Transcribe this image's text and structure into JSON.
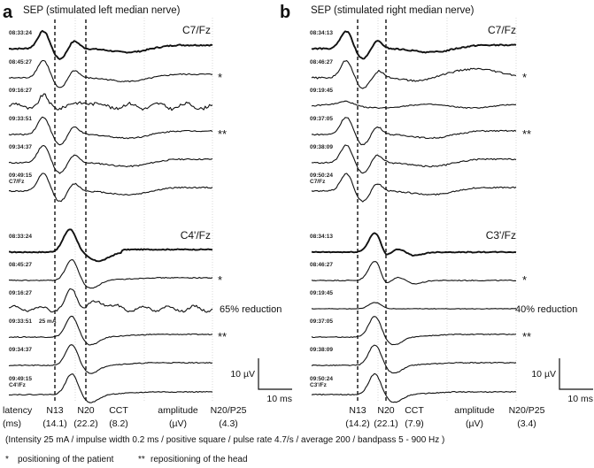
{
  "chart_data": {
    "type": "line",
    "description": "Somatosensory evoked potential (SEP) recordings over time",
    "panels": [
      {
        "letter": "a",
        "title": "SEP (stimulated left median nerve)",
        "groups": [
          {
            "channel": "C7/Fz",
            "traces": [
              {
                "time": "08:33:24",
                "marker": "",
                "extra": "",
                "shape": "c7_clean",
                "bold": true
              },
              {
                "time": "08:45:27",
                "marker": "*",
                "extra": "",
                "shape": "c7_clean"
              },
              {
                "time": "09:16:27",
                "marker": "",
                "extra": "",
                "shape": "c7_noisy"
              },
              {
                "time": "09:33:51",
                "marker": "**",
                "extra": "",
                "shape": "c7_clean"
              },
              {
                "time": "09:34:37",
                "marker": "",
                "extra": "",
                "shape": "c7_clean"
              },
              {
                "time": "09:49:15",
                "marker": "",
                "extra": "C7/Fz",
                "shape": "c7_clean"
              }
            ]
          },
          {
            "channel": "C4'/Fz",
            "traces": [
              {
                "time": "08:33:24",
                "marker": "",
                "extra": "",
                "shape": "cort_big",
                "bold": true
              },
              {
                "time": "08:45:27",
                "marker": "*",
                "extra": "",
                "shape": "cort"
              },
              {
                "time": "09:16:27",
                "marker": "",
                "extra": "",
                "shape": "cort_noisy",
                "note": "65% reduction"
              },
              {
                "time": "09:33:51",
                "marker": "**",
                "extra": "25 mA",
                "shape": "cort"
              },
              {
                "time": "09:34:37",
                "marker": "",
                "extra": "",
                "shape": "cort"
              },
              {
                "time": "09:49:15",
                "marker": "",
                "extra": "C4'/Fz",
                "shape": "cort"
              }
            ]
          }
        ],
        "scale_bar": {
          "vertical": "10 µV",
          "horizontal": "10 ms"
        },
        "latency_row": {
          "label_line1": "latency",
          "label_line2": "(ms)",
          "items": [
            {
              "name": "N13",
              "value": "(14.1)"
            },
            {
              "name": "N20",
              "value": "(22.2)"
            },
            {
              "name": "CCT",
              "value": "(8.2)"
            },
            {
              "name": "amplitude",
              "value": "(µV)"
            },
            {
              "name": "N20/P25",
              "value": "(4.3)"
            }
          ]
        }
      },
      {
        "letter": "b",
        "title": "SEP (stimulated right median nerve)",
        "groups": [
          {
            "channel": "C7/Fz",
            "traces": [
              {
                "time": "08:34:13",
                "marker": "",
                "extra": "",
                "shape": "c7_clean",
                "bold": true
              },
              {
                "time": "08:46:27",
                "marker": "*",
                "extra": "",
                "shape": "c7_wavy"
              },
              {
                "time": "09:19:45",
                "marker": "",
                "extra": "",
                "shape": "c7_small"
              },
              {
                "time": "09:37:05",
                "marker": "**",
                "extra": "",
                "shape": "c7_clean"
              },
              {
                "time": "09:38:09",
                "marker": "",
                "extra": "",
                "shape": "c7_clean"
              },
              {
                "time": "09:50:24",
                "marker": "",
                "extra": "C7/Fz",
                "shape": "c7_clean"
              }
            ]
          },
          {
            "channel": "C3'/Fz",
            "traces": [
              {
                "time": "08:34:13",
                "marker": "",
                "extra": "",
                "shape": "cort_b",
                "bold": true
              },
              {
                "time": "08:46:27",
                "marker": "*",
                "extra": "",
                "shape": "cort_b"
              },
              {
                "time": "09:19:45",
                "marker": "",
                "extra": "",
                "shape": "cort_small",
                "note": "40% reduction"
              },
              {
                "time": "09:37:05",
                "marker": "**",
                "extra": "",
                "shape": "cort"
              },
              {
                "time": "09:38:09",
                "marker": "",
                "extra": "",
                "shape": "cort"
              },
              {
                "time": "09:50:24",
                "marker": "",
                "extra": "C3'/Fz",
                "shape": "cort"
              }
            ]
          }
        ],
        "scale_bar": {
          "vertical": "10 µV",
          "horizontal": "10 ms"
        },
        "latency_row": {
          "label_line1": "",
          "label_line2": "",
          "items": [
            {
              "name": "N13",
              "value": "(14.2)"
            },
            {
              "name": "N20",
              "value": "(22.1)"
            },
            {
              "name": "CCT",
              "value": "(7.9)"
            },
            {
              "name": "amplitude",
              "value": "(µV)"
            },
            {
              "name": "N20/P25",
              "value": "(3.4)"
            }
          ]
        }
      }
    ]
  },
  "footer": {
    "parameters": "(Intensity 25 mA / impulse width 0.2 ms / positive square / pulse rate 4.7/s  / average 200 / bandpass 5 - 900 Hz )",
    "legend_star": "*",
    "legend_star_text": "positioning of the patient",
    "legend_dstar": "**",
    "legend_dstar_text": "repositioning of the head"
  }
}
